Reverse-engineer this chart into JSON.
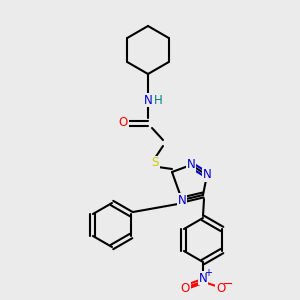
{
  "background_color": "#ebebeb",
  "atom_colors": {
    "N": "#0000cc",
    "O": "#ff0000",
    "S": "#cccc00",
    "NH": "#008080",
    "C": "#000000"
  },
  "bond_color": "#000000",
  "figsize": [
    3.0,
    3.0
  ],
  "dpi": 100,
  "lw": 1.5,
  "fs": 8.5
}
